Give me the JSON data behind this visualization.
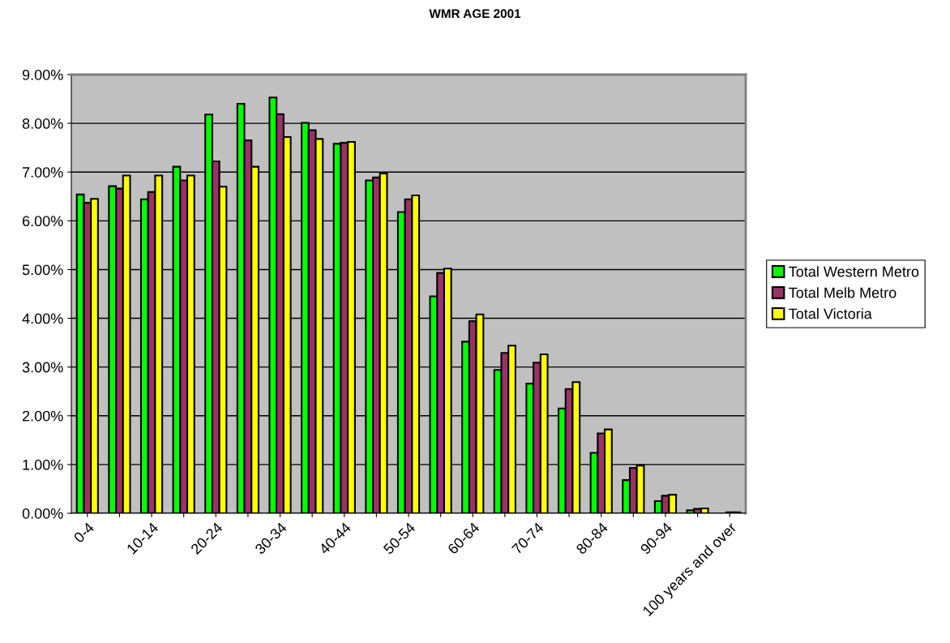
{
  "chart_data": {
    "type": "bar",
    "title": "WMR AGE 2001",
    "categories": [
      "0-4",
      null,
      "10-14",
      null,
      "20-24",
      null,
      "30-34",
      null,
      "40-44",
      null,
      "50-54",
      null,
      "60-64",
      null,
      "70-74",
      null,
      "80-84",
      null,
      "90-94",
      null,
      "100 years and over"
    ],
    "series": [
      {
        "name": "Total Western Metro",
        "color": "#00ff00",
        "values": [
          6.54,
          6.71,
          6.44,
          7.11,
          8.18,
          8.4,
          8.53,
          8.01,
          7.58,
          6.83,
          6.18,
          4.45,
          3.52,
          2.94,
          2.66,
          2.15,
          1.24,
          0.68,
          0.25,
          0.06,
          null
        ]
      },
      {
        "name": "Total Melb Metro",
        "color": "#993366",
        "values": [
          6.37,
          6.66,
          6.59,
          6.83,
          7.22,
          7.65,
          8.19,
          7.86,
          7.6,
          6.89,
          6.44,
          4.93,
          3.94,
          3.29,
          3.09,
          2.55,
          1.64,
          0.93,
          0.36,
          0.09,
          0.02
        ]
      },
      {
        "name": "Total Victoria",
        "color": "#ffff00",
        "values": [
          6.45,
          6.93,
          6.93,
          6.93,
          6.7,
          7.11,
          7.72,
          7.68,
          7.62,
          6.97,
          6.52,
          5.02,
          4.08,
          3.44,
          3.26,
          2.69,
          1.72,
          0.98,
          0.38,
          0.1,
          0.02
        ]
      }
    ],
    "ylim": [
      0,
      9
    ],
    "yticks": [
      {
        "value": 0,
        "label": "0.00%"
      },
      {
        "value": 1,
        "label": "1.00%"
      },
      {
        "value": 2,
        "label": "2.00%"
      },
      {
        "value": 3,
        "label": "3.00%"
      },
      {
        "value": 4,
        "label": "4.00%"
      },
      {
        "value": 5,
        "label": "5.00%"
      },
      {
        "value": 6,
        "label": "6.00%"
      },
      {
        "value": 7,
        "label": "7.00%"
      },
      {
        "value": 8,
        "label": "8.00%"
      },
      {
        "value": 9,
        "label": "9.00%"
      }
    ],
    "grid": "y",
    "legend": "right"
  }
}
